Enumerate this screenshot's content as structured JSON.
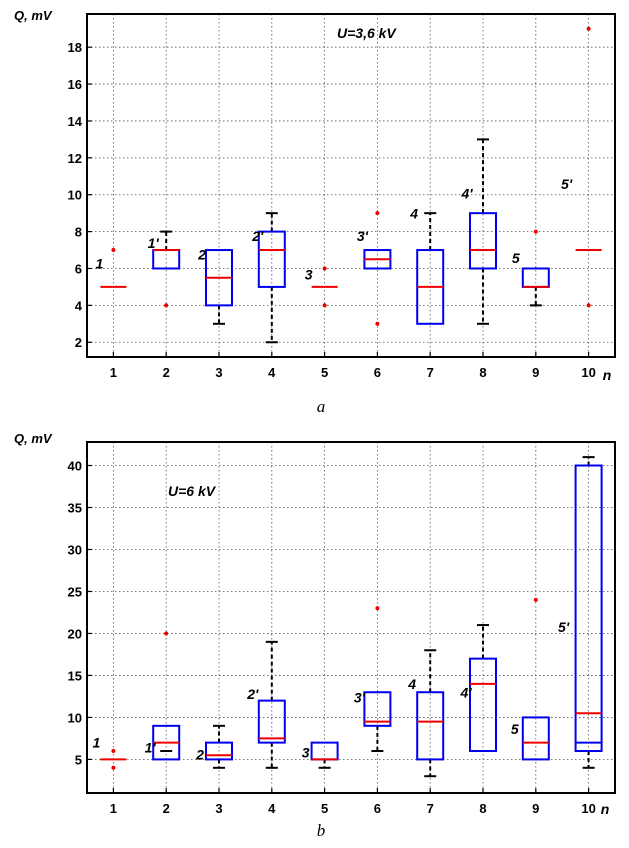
{
  "colors": {
    "box": "#0000ee",
    "median": "#ee0000",
    "whisker": "#000000",
    "outlier": "#ee0000"
  },
  "chart_data": [
    {
      "type": "box",
      "annotation": "U=3,6 kV",
      "caption": "a",
      "ylabel": "Q, mV",
      "xlabel": "n",
      "xlim": [
        0.5,
        10.5
      ],
      "ylim": [
        1.2,
        19.8
      ],
      "yticks": [
        2,
        4,
        6,
        8,
        10,
        12,
        14,
        16,
        18
      ],
      "xticks": [
        1,
        2,
        3,
        4,
        5,
        6,
        7,
        8,
        9,
        10
      ],
      "grid": true,
      "boxes": [
        {
          "x": 1,
          "label": "1",
          "q1": 5,
          "median": 5,
          "q3": 5,
          "wlo": 5,
          "whi": 5,
          "outliers": [
            7
          ]
        },
        {
          "x": 2,
          "label": "1'",
          "q1": 6,
          "median": 7,
          "q3": 7,
          "wlo": 6,
          "whi": 8,
          "outliers": [
            4
          ]
        },
        {
          "x": 3,
          "label": "2",
          "q1": 4,
          "median": 5.5,
          "q3": 7,
          "wlo": 3,
          "whi": 7,
          "outliers": []
        },
        {
          "x": 4,
          "label": "2'",
          "q1": 5,
          "median": 7,
          "q3": 8,
          "wlo": 2,
          "whi": 9,
          "outliers": []
        },
        {
          "x": 5,
          "label": "3",
          "q1": 5,
          "median": 5,
          "q3": 5,
          "wlo": 5,
          "whi": 5,
          "outliers": [
            6,
            4
          ]
        },
        {
          "x": 6,
          "label": "3'",
          "q1": 6,
          "median": 6.5,
          "q3": 7,
          "wlo": 6,
          "whi": 7,
          "outliers": [
            9,
            3
          ]
        },
        {
          "x": 7,
          "label": "4",
          "q1": 3,
          "median": 5,
          "q3": 7,
          "wlo": 3,
          "whi": 9,
          "outliers": []
        },
        {
          "x": 8,
          "label": "4'",
          "q1": 6,
          "median": 7,
          "q3": 9,
          "wlo": 3,
          "whi": 13,
          "outliers": []
        },
        {
          "x": 9,
          "label": "5",
          "q1": 5,
          "median": 5,
          "q3": 6,
          "wlo": 4,
          "whi": 6,
          "outliers": [
            8
          ]
        },
        {
          "x": 10,
          "label": "5'",
          "q1": 7,
          "median": 7,
          "q3": 7,
          "wlo": 7,
          "whi": 7,
          "outliers": [
            19,
            4
          ]
        }
      ]
    },
    {
      "type": "box",
      "annotation": "U=6 kV",
      "caption": "b",
      "ylabel": "Q, mV",
      "xlabel": "n",
      "xlim": [
        0.5,
        10.5
      ],
      "ylim": [
        1,
        42.8
      ],
      "yticks": [
        5,
        10,
        15,
        20,
        25,
        30,
        35,
        40
      ],
      "xticks": [
        1,
        2,
        3,
        4,
        5,
        6,
        7,
        8,
        9,
        10
      ],
      "grid": true,
      "boxes": [
        {
          "x": 1,
          "label": "1",
          "q1": 5,
          "median": 5,
          "q3": 5,
          "wlo": 5,
          "whi": 5,
          "outliers": [
            6,
            4
          ]
        },
        {
          "x": 2,
          "label": "1'",
          "q1": 5,
          "median": 7,
          "q3": 9,
          "wlo": 5,
          "whi": 6,
          "outliers": [
            20
          ]
        },
        {
          "x": 3,
          "label": "2",
          "q1": 5,
          "median": 5.5,
          "q3": 7,
          "wlo": 4,
          "whi": 9,
          "outliers": []
        },
        {
          "x": 4,
          "label": "2'",
          "q1": 7,
          "median": 7.5,
          "q3": 12,
          "wlo": 4,
          "whi": 19,
          "outliers": []
        },
        {
          "x": 5,
          "label": "3",
          "q1": 5,
          "median": 5,
          "q3": 7,
          "wlo": 4,
          "whi": 7,
          "outliers": []
        },
        {
          "x": 6,
          "label": "3'",
          "q1": 9,
          "median": 9.5,
          "q3": 13,
          "wlo": 6,
          "whi": 13,
          "outliers": [
            23
          ]
        },
        {
          "x": 7,
          "label": "4",
          "q1": 5,
          "median": 9.5,
          "q3": 13,
          "wlo": 3,
          "whi": 18,
          "outliers": []
        },
        {
          "x": 8,
          "label": "4'",
          "q1": 6,
          "median": 14,
          "q3": 17,
          "wlo": 6,
          "whi": 21,
          "outliers": []
        },
        {
          "x": 9,
          "label": "5",
          "q1": 5,
          "median": 7,
          "q3": 10,
          "wlo": 6,
          "whi": 10,
          "outliers": [
            24
          ]
        },
        {
          "x": 10,
          "label": "5'",
          "q1": 6,
          "median": 10.5,
          "q3": 40,
          "wlo": 4,
          "whi": 41,
          "outliers": [],
          "inner_line": 7
        }
      ]
    }
  ]
}
